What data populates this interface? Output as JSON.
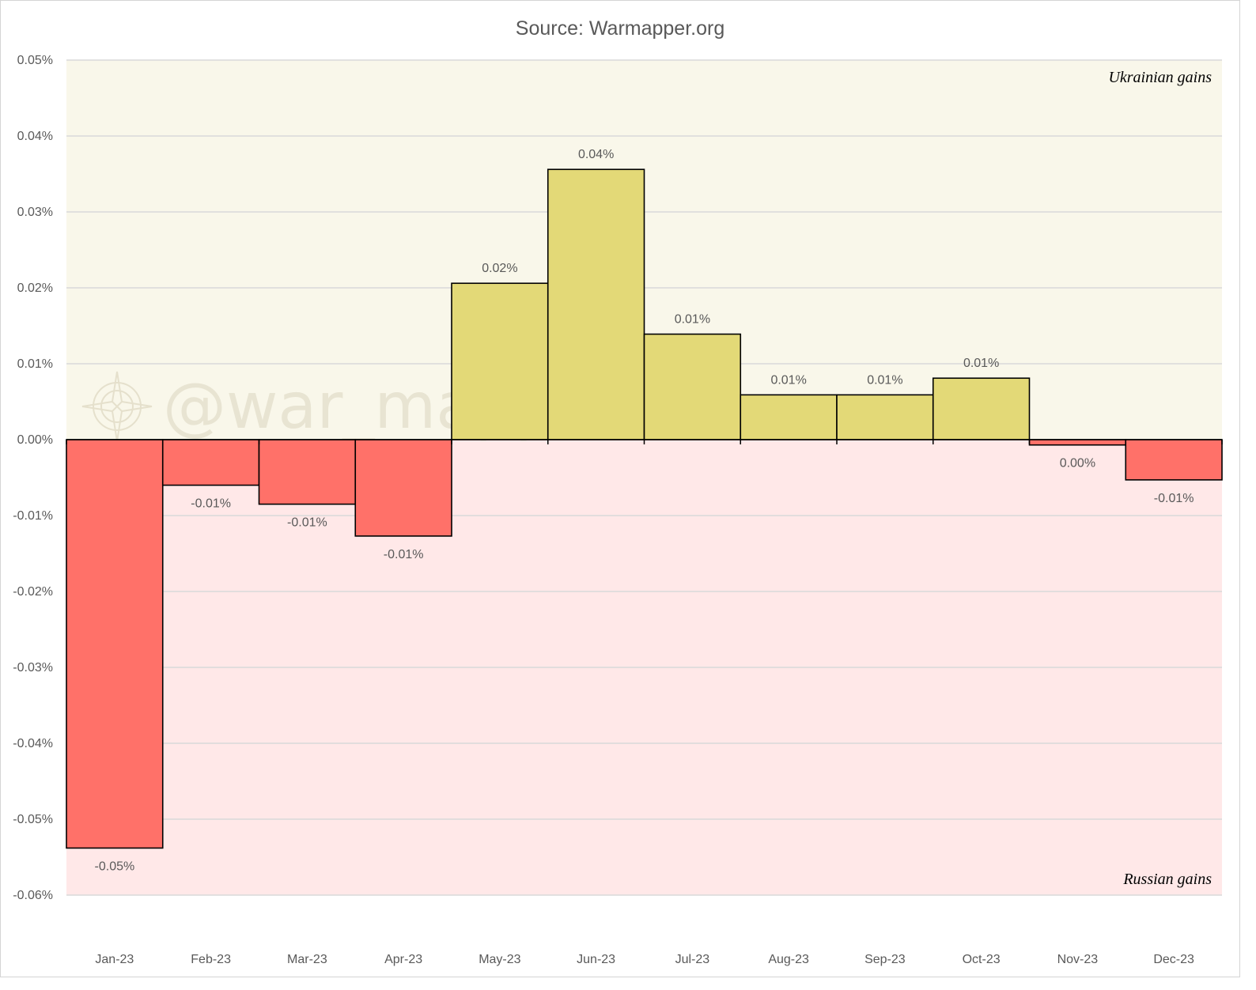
{
  "chart_data": {
    "type": "bar",
    "title": "Source: Warmapper.org",
    "categories": [
      "Jan-23",
      "Feb-23",
      "Mar-23",
      "Apr-23",
      "May-23",
      "Jun-23",
      "Jul-23",
      "Aug-23",
      "Sep-23",
      "Oct-23",
      "Nov-23",
      "Dec-23"
    ],
    "values": [
      -0.0538,
      -0.006,
      -0.0085,
      -0.0127,
      0.0206,
      0.0356,
      0.0139,
      0.0059,
      0.0059,
      0.0081,
      -0.0007,
      -0.0053
    ],
    "data_labels": [
      "-0.05%",
      "-0.01%",
      "-0.01%",
      "-0.01%",
      "0.02%",
      "0.04%",
      "0.01%",
      "0.01%",
      "0.01%",
      "0.01%",
      "0.00%",
      "-0.01%"
    ],
    "y_unit": "%",
    "ylim": [
      -0.06,
      0.05
    ],
    "y_ticks": [
      0.05,
      0.04,
      0.03,
      0.02,
      0.01,
      0.0,
      -0.01,
      -0.02,
      -0.03,
      -0.04,
      -0.05,
      -0.06
    ],
    "y_tick_labels": [
      "0.05%",
      "0.04%",
      "0.03%",
      "0.02%",
      "0.01%",
      "0.00%",
      "-0.01%",
      "-0.02%",
      "-0.03%",
      "-0.04%",
      "-0.05%",
      "-0.06%"
    ],
    "xlabel": "",
    "ylabel": "",
    "grid": true,
    "positive_zone_label": "Ukrainian gains",
    "negative_zone_label": "Russian gains",
    "watermark": "@war_mapper",
    "colors": {
      "positive_bar": "#e3d977",
      "negative_bar": "#ff7169",
      "positive_zone": "#f9f7ea",
      "negative_zone": "#ffe8e8",
      "gridline": "#d9d9d9",
      "bar_outline": "#000000"
    }
  }
}
